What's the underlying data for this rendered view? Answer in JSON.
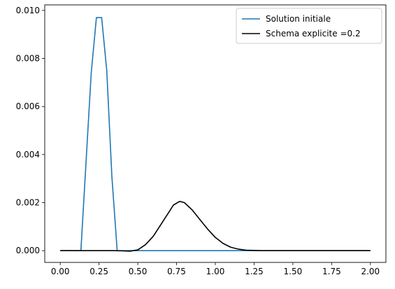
{
  "chart_data": {
    "type": "line",
    "title": "",
    "xlabel": "",
    "ylabel": "",
    "xlim": [
      -0.1,
      2.1
    ],
    "ylim": [
      -0.00049,
      0.01023
    ],
    "xticks": [
      0.0,
      0.25,
      0.5,
      0.75,
      1.0,
      1.25,
      1.5,
      1.75,
      2.0
    ],
    "xtick_labels": [
      "0.00",
      "0.25",
      "0.50",
      "0.75",
      "1.00",
      "1.25",
      "1.50",
      "1.75",
      "2.00"
    ],
    "yticks": [
      0.0,
      0.002,
      0.004,
      0.006,
      0.008,
      0.01
    ],
    "ytick_labels": [
      "0.000",
      "0.002",
      "0.004",
      "0.006",
      "0.008",
      "0.010"
    ],
    "grid": false,
    "legend_position": "top-right",
    "series": [
      {
        "name": "Solution initiale",
        "color": "#1f77b4",
        "x": [
          0.0,
          0.133,
          0.2,
          0.233,
          0.267,
          0.3,
          0.333,
          0.367,
          0.4,
          2.0
        ],
        "y": [
          0.0,
          0.0,
          0.0074,
          0.0097,
          0.0097,
          0.0075,
          0.0031,
          0.0,
          0.0,
          0.0
        ]
      },
      {
        "name": "Schema explicite =0.2",
        "color": "#000000",
        "x": [
          0.0,
          0.35,
          0.4,
          0.45,
          0.5,
          0.55,
          0.6,
          0.65,
          0.7,
          0.73,
          0.77,
          0.8,
          0.85,
          0.9,
          0.95,
          1.0,
          1.05,
          1.1,
          1.15,
          1.2,
          1.3,
          1.5,
          2.0
        ],
        "y": [
          0.0,
          0.0,
          -1e-05,
          -2e-05,
          3e-05,
          0.00025,
          0.0006,
          0.0011,
          0.0016,
          0.0019,
          0.00205,
          0.002,
          0.0017,
          0.0013,
          0.0009,
          0.00055,
          0.0003,
          0.00014,
          6e-05,
          2e-05,
          0.0,
          0.0,
          0.0
        ]
      }
    ]
  }
}
